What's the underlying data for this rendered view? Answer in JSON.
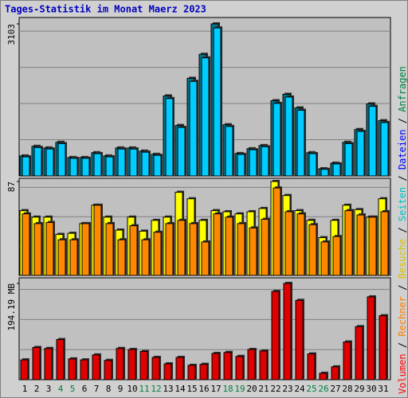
{
  "title": "Tages-Statistik im Monat Maerz 2023",
  "legend_separator": " / ",
  "legend": [
    {
      "name": "Volumen",
      "color": "#ff0000"
    },
    {
      "name": "Rechner",
      "color": "#ff8000"
    },
    {
      "name": "Besuche",
      "color": "#d8c000"
    },
    {
      "name": "Seiten",
      "color": "#00c0c0"
    },
    {
      "name": "Dateien",
      "color": "#0000ff"
    },
    {
      "name": "Anfragen",
      "color": "#008040"
    }
  ],
  "categories": [
    "1",
    "2",
    "3",
    "4",
    "5",
    "6",
    "7",
    "8",
    "9",
    "10",
    "11",
    "12",
    "13",
    "14",
    "15",
    "16",
    "17",
    "18",
    "19",
    "20",
    "21",
    "22",
    "23",
    "24",
    "25",
    "26",
    "27",
    "28",
    "29",
    "30",
    "31"
  ],
  "category_colors": [
    "#000",
    "#000",
    "#000",
    "#008040",
    "#008040",
    "#000",
    "#000",
    "#000",
    "#000",
    "#000",
    "#008040",
    "#008040",
    "#000",
    "#000",
    "#000",
    "#000",
    "#000",
    "#008040",
    "#008040",
    "#000",
    "#000",
    "#000",
    "#000",
    "#000",
    "#008040",
    "#008040",
    "#000",
    "#000",
    "#000",
    "#000",
    "#000"
  ],
  "chart_data": [
    {
      "type": "bar",
      "ylim": [
        0,
        3103
      ],
      "yticks": [
        3103
      ],
      "series": [
        {
          "color": "#007890",
          "values": [
            408,
            604,
            571,
            686,
            376,
            376,
            474,
            408,
            571,
            571,
            506,
            441,
            1633,
            1029,
            1992,
            2482,
            3103,
            1045,
            457,
            555,
            620,
            1535,
            1666,
            1388,
            474,
            147,
            261,
            686,
            947,
            1470,
            1127
          ]
        },
        {
          "color": "#00ccff",
          "values": [
            390,
            580,
            550,
            660,
            360,
            360,
            455,
            390,
            550,
            550,
            485,
            420,
            1580,
            990,
            1930,
            2410,
            3020,
            1010,
            440,
            535,
            595,
            1480,
            1610,
            1340,
            455,
            135,
            245,
            660,
            910,
            1420,
            1090
          ]
        }
      ]
    },
    {
      "type": "bar",
      "ylim": [
        0,
        87
      ],
      "yticks": [
        87
      ],
      "series": [
        {
          "color": "#ffff00",
          "values": [
            60,
            54,
            54,
            38,
            39,
            48,
            65,
            54,
            42,
            54,
            41,
            51,
            54,
            77,
            71,
            51,
            60,
            59,
            57,
            59,
            62,
            87,
            74,
            60,
            51,
            35,
            51,
            65,
            61,
            54,
            71
          ]
        },
        {
          "color": "#ff8800",
          "values": [
            57,
            48,
            49,
            33,
            33,
            48,
            65,
            48,
            33,
            46,
            33,
            40,
            48,
            51,
            48,
            31,
            57,
            54,
            48,
            44,
            52,
            81,
            59,
            57,
            47,
            31,
            36,
            60,
            56,
            54,
            59
          ]
        }
      ]
    },
    {
      "type": "bar",
      "ylim": [
        0,
        194.19
      ],
      "yticks": [
        {
          "value": 194.19,
          "label": "194.19 MB"
        }
      ],
      "series": [
        {
          "color": "#e00000",
          "values": [
            40,
            65,
            63,
            81,
            42,
            40,
            50,
            39,
            63,
            61,
            57,
            45,
            32,
            45,
            29,
            31,
            53,
            55,
            47,
            61,
            58,
            178,
            194.19,
            160,
            52,
            13,
            26,
            76,
            107,
            167,
            129
          ]
        }
      ]
    }
  ]
}
